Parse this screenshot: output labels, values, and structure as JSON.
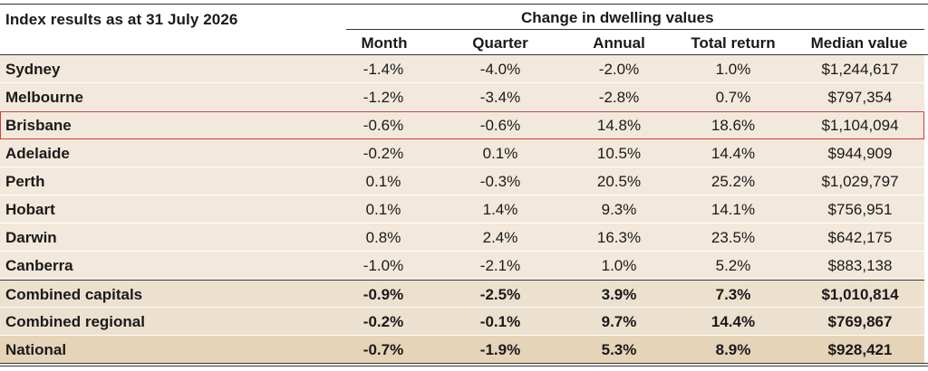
{
  "title": "Index results as at 31 July 2026",
  "group_header": "Change in dwelling values",
  "columns": [
    "Month",
    "Quarter",
    "Annual",
    "Total return",
    "Median value"
  ],
  "rows": [
    {
      "name": "Sydney",
      "month": "-1.4%",
      "quarter": "-4.0%",
      "annual": "-2.0%",
      "total": "1.0%",
      "median": "$1,244,617"
    },
    {
      "name": "Melbourne",
      "month": "-1.2%",
      "quarter": "-3.4%",
      "annual": "-2.8%",
      "total": "0.7%",
      "median": "$797,354"
    },
    {
      "name": "Brisbane",
      "month": "-0.6%",
      "quarter": "-0.6%",
      "annual": "14.8%",
      "total": "18.6%",
      "median": "$1,104,094"
    },
    {
      "name": "Adelaide",
      "month": "-0.2%",
      "quarter": "0.1%",
      "annual": "10.5%",
      "total": "14.4%",
      "median": "$944,909"
    },
    {
      "name": "Perth",
      "month": "0.1%",
      "quarter": "-0.3%",
      "annual": "20.5%",
      "total": "25.2%",
      "median": "$1,029,797"
    },
    {
      "name": "Hobart",
      "month": "0.1%",
      "quarter": "1.4%",
      "annual": "9.3%",
      "total": "14.1%",
      "median": "$756,951"
    },
    {
      "name": "Darwin",
      "month": "0.8%",
      "quarter": "2.4%",
      "annual": "16.3%",
      "total": "23.5%",
      "median": "$642,175"
    },
    {
      "name": "Canberra",
      "month": "-1.0%",
      "quarter": "-2.1%",
      "annual": "1.0%",
      "total": "5.2%",
      "median": "$883,138"
    }
  ],
  "summary_rows": [
    {
      "name": "Combined capitals",
      "month": "-0.9%",
      "quarter": "-2.5%",
      "annual": "3.9%",
      "total": "7.3%",
      "median": "$1,010,814"
    },
    {
      "name": "Combined regional",
      "month": "-0.2%",
      "quarter": "-0.1%",
      "annual": "9.7%",
      "total": "14.4%",
      "median": "$769,867"
    },
    {
      "name": "National",
      "month": "-0.7%",
      "quarter": "-1.9%",
      "annual": "5.3%",
      "total": "8.9%",
      "median": "$928,421"
    }
  ],
  "colors": {
    "row_bg": "#f2e9dc",
    "national_bg": "#e5d4b8",
    "highlight_border": "#d63a3a"
  }
}
